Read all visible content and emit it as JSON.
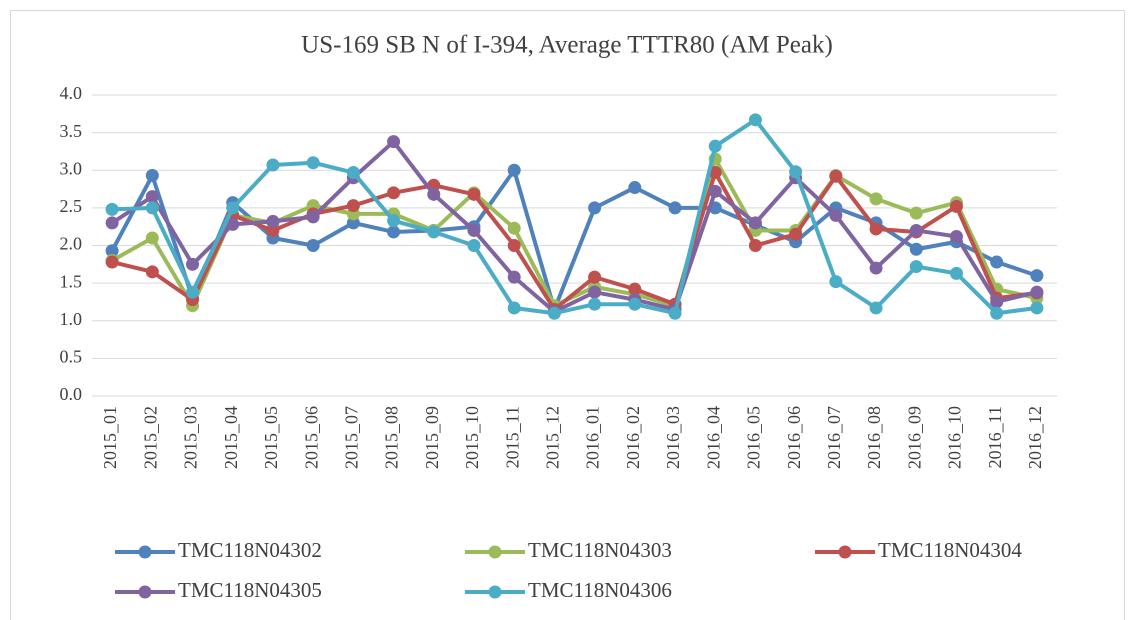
{
  "chart_data": {
    "type": "line",
    "title": "US-169 SB N of I-394, Average TTTR80 (AM Peak)",
    "categories": [
      "2015_01",
      "2015_02",
      "2015_03",
      "2015_04",
      "2015_05",
      "2015_06",
      "2015_07",
      "2015_08",
      "2015_09",
      "2015_10",
      "2015_11",
      "2015_12",
      "2016_01",
      "2016_02",
      "2016_03",
      "2016_04",
      "2016_05",
      "2016_06",
      "2016_07",
      "2016_08",
      "2016_09",
      "2016_10",
      "2016_11",
      "2016_12"
    ],
    "series": [
      {
        "name": "TMC118N04302",
        "color": "#4f81bd",
        "values": [
          1.93,
          2.93,
          1.3,
          2.57,
          2.1,
          2.0,
          2.3,
          2.18,
          2.2,
          2.25,
          3.0,
          1.15,
          2.5,
          2.77,
          2.5,
          2.5,
          2.27,
          2.05,
          2.5,
          2.3,
          1.95,
          2.05,
          1.78,
          1.6
        ]
      },
      {
        "name": "TMC118N04303",
        "color": "#9bbb59",
        "values": [
          1.8,
          2.1,
          1.2,
          2.4,
          2.3,
          2.53,
          2.42,
          2.42,
          2.2,
          2.7,
          2.23,
          1.2,
          1.45,
          1.35,
          1.2,
          3.15,
          2.2,
          2.2,
          2.93,
          2.62,
          2.43,
          2.57,
          1.42,
          1.3
        ]
      },
      {
        "name": "TMC118N04304",
        "color": "#c0504d",
        "values": [
          1.78,
          1.65,
          1.28,
          2.4,
          2.2,
          2.42,
          2.53,
          2.7,
          2.8,
          2.68,
          2.0,
          1.15,
          1.58,
          1.42,
          1.22,
          2.97,
          2.0,
          2.15,
          2.92,
          2.22,
          2.18,
          2.52,
          1.3,
          1.37
        ]
      },
      {
        "name": "TMC118N04305",
        "color": "#8064a2",
        "values": [
          2.3,
          2.65,
          1.75,
          2.28,
          2.32,
          2.38,
          2.9,
          3.38,
          2.68,
          2.2,
          1.58,
          1.12,
          1.38,
          1.28,
          1.15,
          2.72,
          2.3,
          2.9,
          2.4,
          1.7,
          2.2,
          2.12,
          1.25,
          1.38
        ]
      },
      {
        "name": "TMC118N04306",
        "color": "#4bacc6",
        "values": [
          2.48,
          2.5,
          1.38,
          2.5,
          3.07,
          3.1,
          2.97,
          2.33,
          2.18,
          2.0,
          1.17,
          1.1,
          1.22,
          1.22,
          1.1,
          3.32,
          3.67,
          2.98,
          1.52,
          1.17,
          1.72,
          1.63,
          1.1,
          1.17
        ]
      }
    ],
    "ylim": [
      0,
      4
    ],
    "yticks": [
      {
        "value": 0,
        "label": "0.0"
      },
      {
        "value": 0.5,
        "label": "0.5"
      },
      {
        "value": 1,
        "label": "1.0"
      },
      {
        "value": 1.5,
        "label": "1.5"
      },
      {
        "value": 2,
        "label": "2.0"
      },
      {
        "value": 2.5,
        "label": "2.5"
      },
      {
        "value": 3,
        "label": "3.0"
      },
      {
        "value": 3.5,
        "label": "3.5"
      },
      {
        "value": 4,
        "label": "4.0"
      }
    ],
    "grid": true,
    "legend": "bottom"
  }
}
